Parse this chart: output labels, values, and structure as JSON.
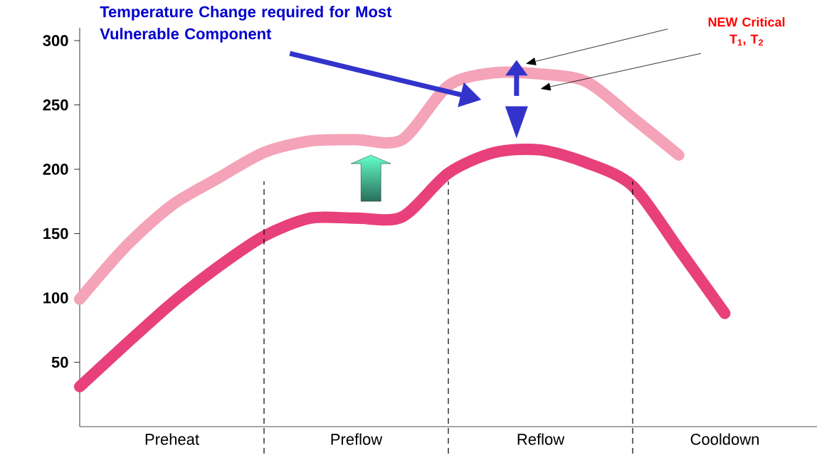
{
  "chart_data": {
    "type": "line",
    "categories": [
      null,
      null,
      null,
      null,
      null,
      null,
      null,
      null,
      null,
      null,
      null,
      null,
      null,
      null,
      null
    ],
    "series": [
      {
        "color": "#e8407a",
        "values": [
          31,
          64,
          96,
          124,
          148,
          162,
          162,
          163,
          197,
          213,
          215,
          205,
          187,
          138,
          88
        ]
      },
      {
        "color": "#f4a3b8",
        "values": [
          99,
          140,
          172,
          193,
          213,
          222,
          223,
          223,
          265,
          275,
          274,
          268,
          240,
          211,
          null
        ]
      }
    ],
    "ylim": [
      0,
      310
    ],
    "yticks": [
      50,
      100,
      150,
      200,
      250,
      300
    ],
    "annotations": [
      "Temperature Change required for Most Vulnerable Component",
      "NEW Critical T$_{1}$, T$_{2}$",
      "Preheat",
      "Preflow",
      "Reflow",
      "Cooldown"
    ]
  }
}
